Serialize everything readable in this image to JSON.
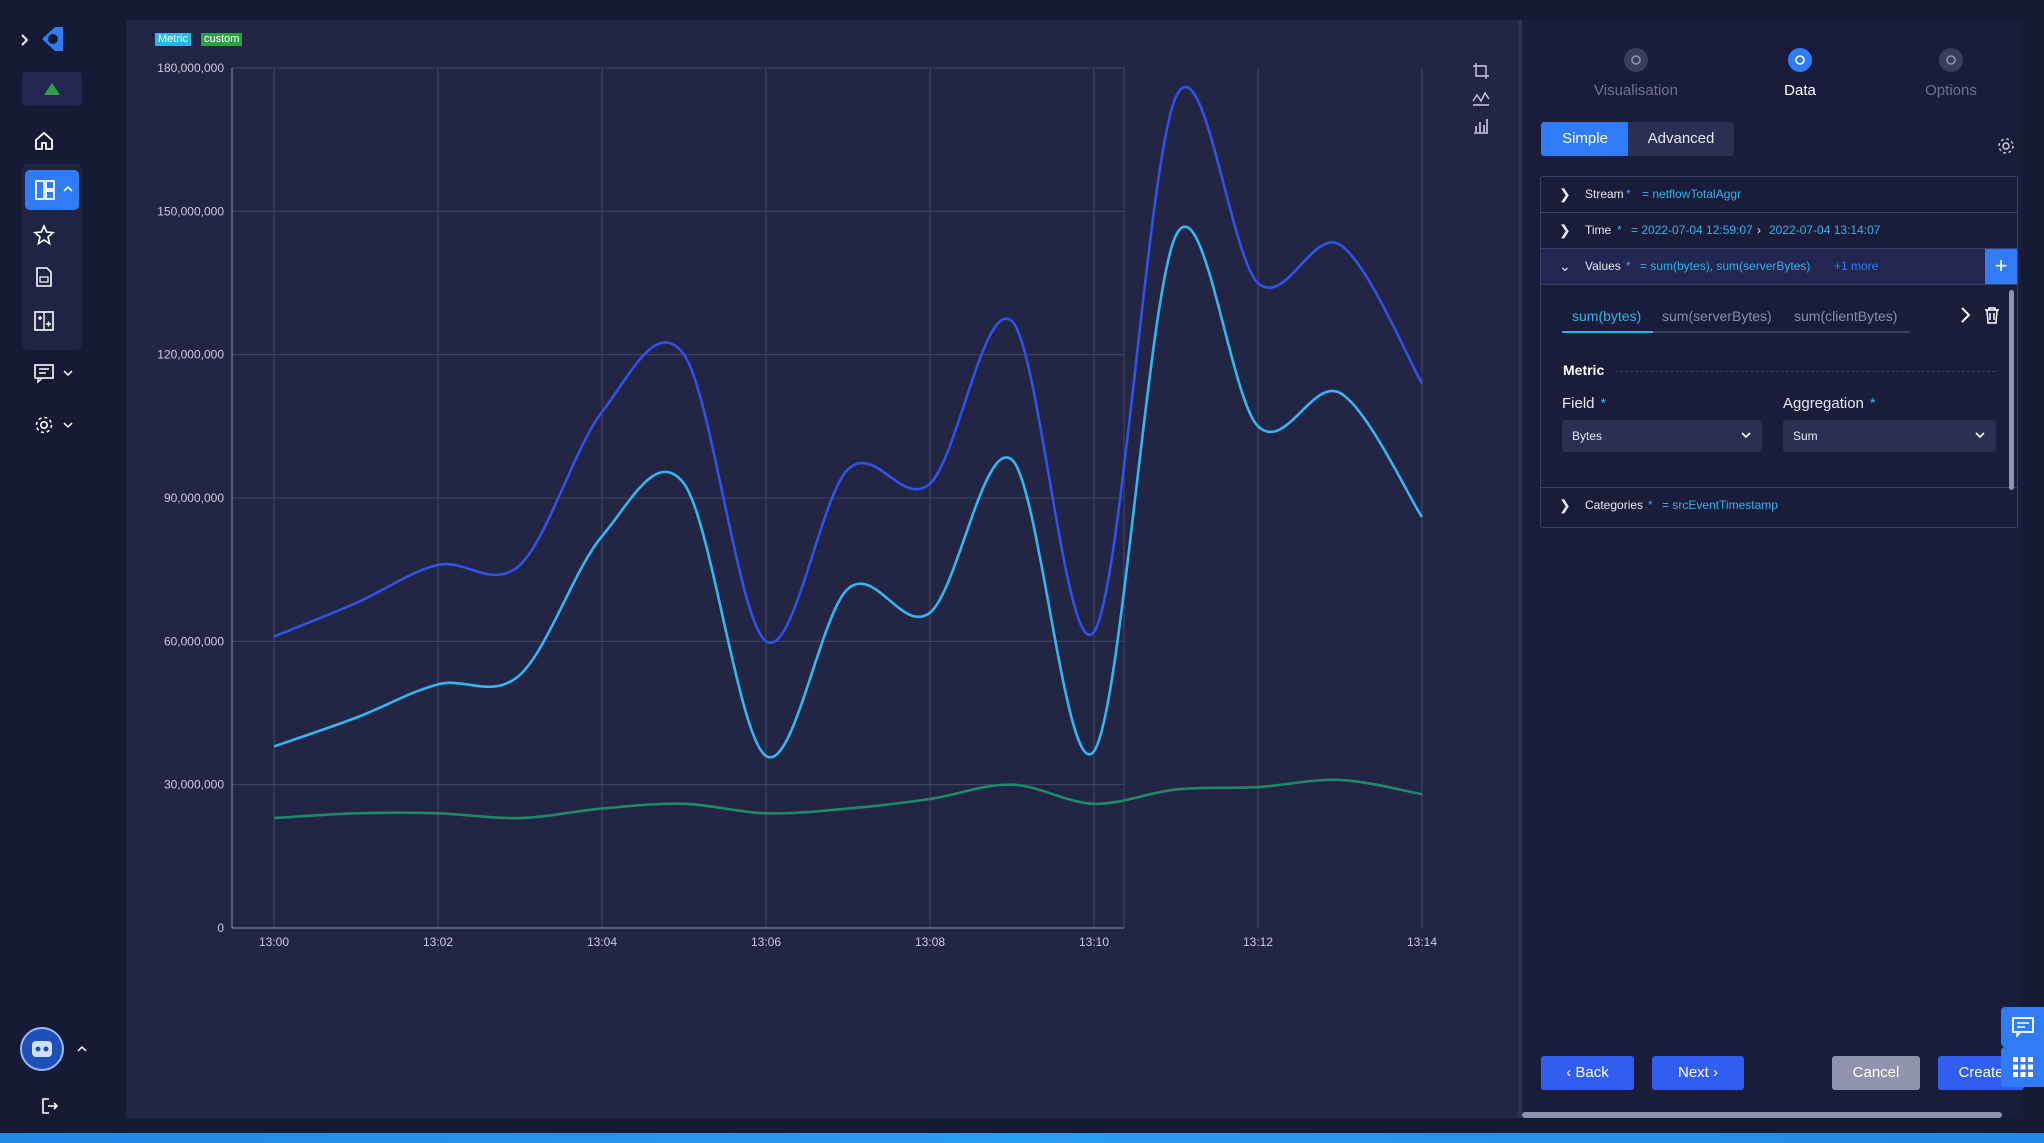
{
  "badges": {
    "metric": "Metric",
    "custom": "custom"
  },
  "chart_data": {
    "type": "line",
    "title": "",
    "xlabel": "",
    "ylabel": "",
    "x": [
      "13:00",
      "13:01",
      "13:02",
      "13:03",
      "13:04",
      "13:05",
      "13:06",
      "13:07",
      "13:08",
      "13:09",
      "13:10",
      "13:11",
      "13:12",
      "13:13",
      "13:14"
    ],
    "xticks": [
      "13:00",
      "13:02",
      "13:04",
      "13:06",
      "13:08",
      "13:10",
      "13:12",
      "13:14"
    ],
    "yticks": [
      0,
      30000000,
      60000000,
      90000000,
      120000000,
      150000000,
      180000000
    ],
    "ytick_labels": [
      "0",
      "30,000,000",
      "60,000,000",
      "90,000,000",
      "120,000,000",
      "150,000,000",
      "180,000,000"
    ],
    "ylim": [
      0,
      180000000
    ],
    "grid": true,
    "series": [
      {
        "values": [
          61000000,
          68000000,
          76000000,
          76000000,
          108000000,
          120000000,
          60000000,
          96000000,
          93000000,
          127000000,
          62000000,
          174000000,
          135000000,
          143000000,
          114000000
        ],
        "color": "#2f52e8"
      },
      {
        "values": [
          38000000,
          44000000,
          51000000,
          53000000,
          82000000,
          93000000,
          36000000,
          71000000,
          66000000,
          98000000,
          37000000,
          145000000,
          105000000,
          112000000,
          86000000
        ],
        "color": "#36b5f0"
      },
      {
        "values": [
          23000000,
          24000000,
          24000000,
          23000000,
          25000000,
          26000000,
          24000000,
          25000000,
          27000000,
          30000000,
          26000000,
          29000000,
          29500000,
          31000000,
          28000000
        ],
        "color": "#1f8a6a"
      }
    ]
  },
  "wizard": {
    "steps": [
      {
        "label": "Visualisation"
      },
      {
        "label": "Data"
      },
      {
        "label": "Options"
      }
    ],
    "mode_simple": "Simple",
    "mode_advanced": "Advanced"
  },
  "accordion": {
    "stream": {
      "label": "Stream",
      "value": "= netflowTotalAggr"
    },
    "time": {
      "label": "Time",
      "value_from": "= 2022-07-04 12:59:07",
      "value_to": "2022-07-04 13:14:07"
    },
    "values": {
      "label": "Values",
      "value": "= sum(bytes), sum(serverBytes)",
      "more": "+1 more"
    },
    "categories": {
      "label": "Categories",
      "value": "= srcEventTimestamp"
    },
    "required_mark": "*"
  },
  "value_tabs": [
    "sum(bytes)",
    "sum(serverBytes)",
    "sum(clientBytes)"
  ],
  "metric": {
    "heading": "Metric",
    "field_label": "Field",
    "field_value": "Bytes",
    "aggregation_label": "Aggregation",
    "aggregation_value": "Sum"
  },
  "footer": {
    "back": "Back",
    "next": "Next",
    "cancel": "Cancel",
    "create": "Create"
  },
  "colors": {
    "accent": "#2f7cf6",
    "cyan": "#36b5f0",
    "green": "#1f8a6a",
    "panel": "#232544"
  }
}
